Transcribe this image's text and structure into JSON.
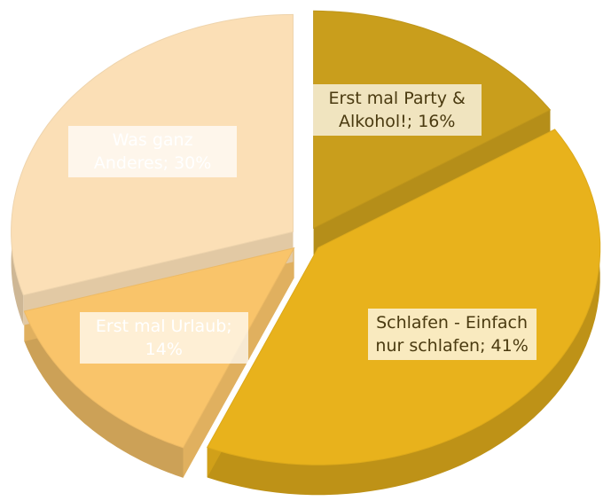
{
  "chart_data": {
    "type": "pie",
    "values": [
      16,
      41,
      14,
      30
    ],
    "value_labels": [
      "Erst mal Party & Alkohol!; 16%",
      "Schlafen - Einfach nur schlafen; 41%",
      "Erst mal Urlaub; 14%",
      "Was ganz Anderes; 30%"
    ],
    "colors": [
      "#c99e1c",
      "#e8b21c",
      "#f9c46a",
      "#fbdfb6"
    ]
  }
}
